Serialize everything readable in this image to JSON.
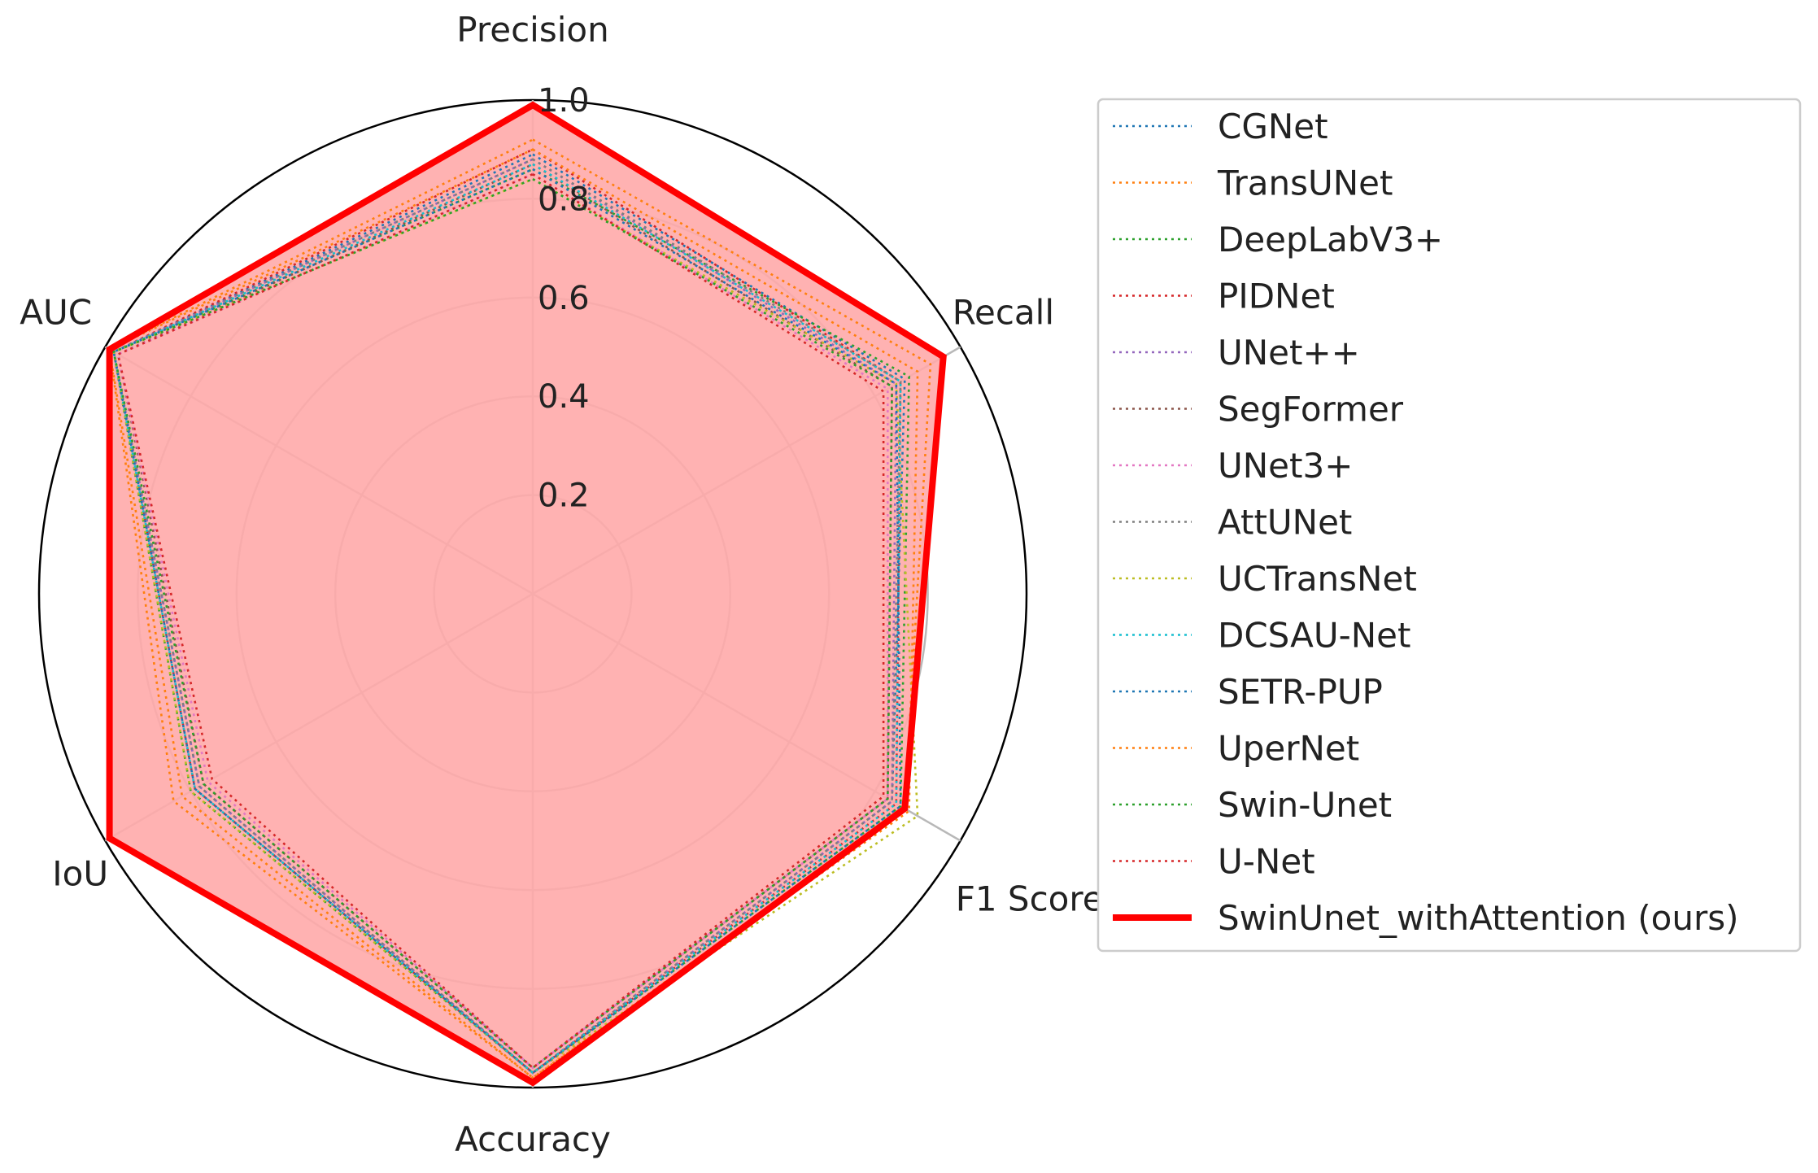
{
  "chart_data": {
    "type": "radar",
    "axes": [
      "Precision",
      "Recall",
      "F1 Score",
      "Accuracy",
      "IoU",
      "AUC"
    ],
    "r_ticks": [
      "0.2",
      "0.4",
      "0.6",
      "0.8",
      "1.0"
    ],
    "r_tick_values": [
      0.2,
      0.4,
      0.6,
      0.8,
      1.0
    ],
    "rlim": [
      0,
      1.0
    ],
    "legend_position": "right",
    "series": [
      {
        "name": "CGNet",
        "color": "#1f77b4",
        "style": "dotted",
        "values": [
          0.89,
          0.87,
          0.84,
          0.97,
          0.78,
          0.98
        ]
      },
      {
        "name": "TransUNet",
        "color": "#ff7f0e",
        "style": "dotted",
        "values": [
          0.92,
          0.93,
          0.87,
          0.98,
          0.84,
          0.99
        ]
      },
      {
        "name": "DeepLabV3+",
        "color": "#2ca02c",
        "style": "dotted",
        "values": [
          0.86,
          0.88,
          0.86,
          0.97,
          0.8,
          0.98
        ]
      },
      {
        "name": "PIDNet",
        "color": "#d62728",
        "style": "dotted",
        "values": [
          0.9,
          0.86,
          0.85,
          0.97,
          0.79,
          0.98
        ]
      },
      {
        "name": "UNet++",
        "color": "#9467bd",
        "style": "dotted",
        "values": [
          0.88,
          0.85,
          0.84,
          0.97,
          0.78,
          0.98
        ]
      },
      {
        "name": "SegFormer",
        "color": "#8c564b",
        "style": "dotted",
        "values": [
          0.87,
          0.84,
          0.83,
          0.96,
          0.77,
          0.97
        ]
      },
      {
        "name": "UNet3+",
        "color": "#e377c2",
        "style": "dotted",
        "values": [
          0.85,
          0.83,
          0.83,
          0.96,
          0.76,
          0.97
        ]
      },
      {
        "name": "AttUNet",
        "color": "#7f7f7f",
        "style": "dotted",
        "values": [
          0.88,
          0.86,
          0.84,
          0.97,
          0.78,
          0.98
        ]
      },
      {
        "name": "UCTransNet",
        "color": "#bcbd22",
        "style": "dotted",
        "values": [
          0.84,
          0.85,
          0.9,
          0.97,
          0.8,
          0.98
        ]
      },
      {
        "name": "DCSAU-Net",
        "color": "#17becf",
        "style": "dotted",
        "values": [
          0.87,
          0.86,
          0.85,
          0.97,
          0.79,
          0.98
        ]
      },
      {
        "name": "SETR-PUP",
        "color": "#1f77b4",
        "style": "dotted",
        "values": [
          0.86,
          0.85,
          0.86,
          0.97,
          0.79,
          0.98
        ]
      },
      {
        "name": "UperNet",
        "color": "#ff7f0e",
        "style": "dotted",
        "values": [
          0.9,
          0.9,
          0.88,
          0.98,
          0.82,
          0.99
        ]
      },
      {
        "name": "Swin-Unet",
        "color": "#2ca02c",
        "style": "dotted",
        "values": [
          0.84,
          0.84,
          0.83,
          0.96,
          0.77,
          0.98
        ]
      },
      {
        "name": "U-Net",
        "color": "#d62728",
        "style": "dotted",
        "values": [
          0.85,
          0.82,
          0.82,
          0.96,
          0.75,
          0.97
        ]
      },
      {
        "name": "SwinUnet_withAttention (ours)",
        "color": "#ff0000",
        "style": "solid",
        "fill": "#ffaaaa",
        "values": [
          0.99,
          0.96,
          0.87,
          0.99,
          0.99,
          0.99
        ]
      }
    ]
  }
}
